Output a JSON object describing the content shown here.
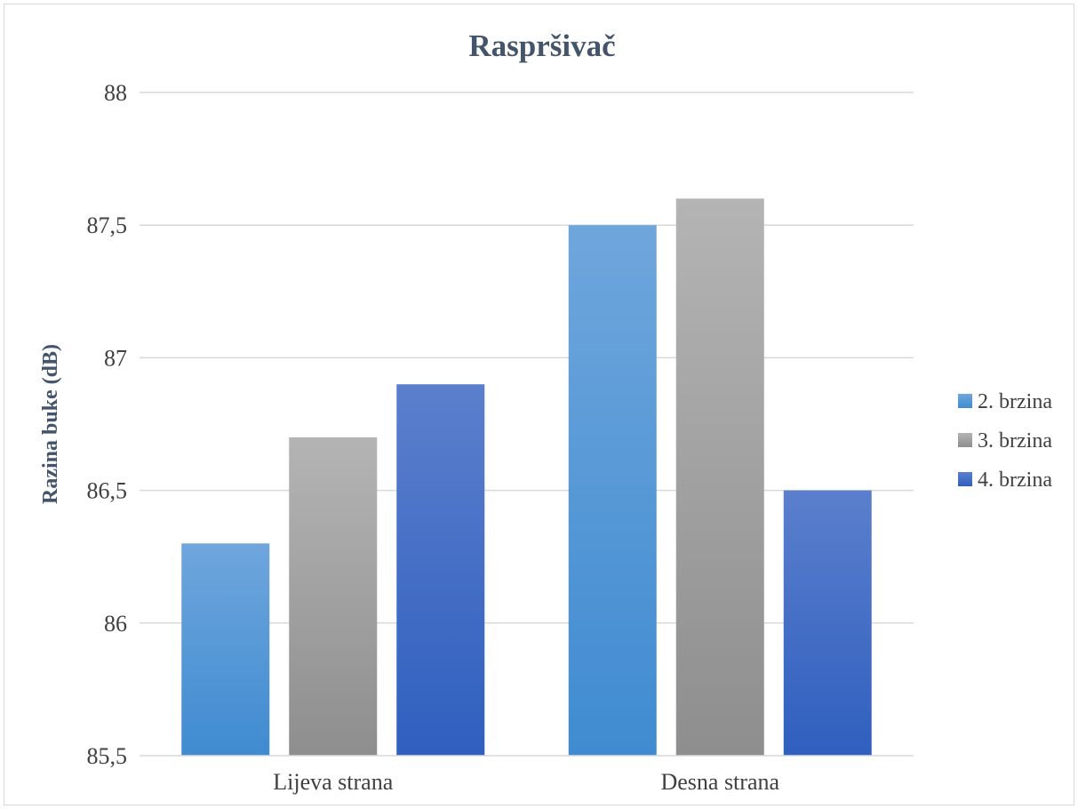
{
  "chart_data": {
    "type": "bar",
    "title": "Raspršivač",
    "ylabel": "Razina buke (dB)",
    "xlabel": "",
    "categories": [
      "Lijeva strana",
      "Desna strana"
    ],
    "series": [
      {
        "name": "2. brzina",
        "values": [
          86.3,
          87.5
        ],
        "color_top": "#6fa6dc",
        "color_bottom": "#3f8bd1"
      },
      {
        "name": "3. brzina",
        "values": [
          86.7,
          87.6
        ],
        "color_top": "#b4b4b4",
        "color_bottom": "#8e8e8e"
      },
      {
        "name": "4. brzina",
        "values": [
          86.9,
          86.5
        ],
        "color_top": "#5b7fcc",
        "color_bottom": "#2f5fbf"
      }
    ],
    "ylim": [
      85.5,
      88
    ],
    "yticks": [
      "85,5",
      "86",
      "86,5",
      "87",
      "87,5",
      "88"
    ],
    "ytick_values": [
      85.5,
      86,
      86.5,
      87,
      87.5,
      88
    ],
    "grid": true,
    "legend_position": "right"
  }
}
